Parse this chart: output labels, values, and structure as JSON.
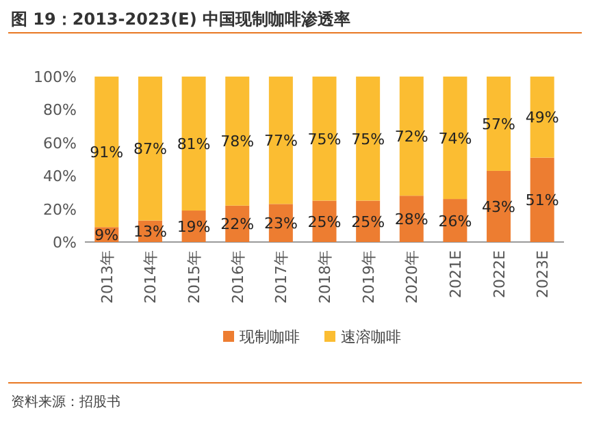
{
  "chart_data": {
    "type": "bar",
    "title": "图 19：2013-2023(E) 中国现制咖啡渗透率",
    "categories": [
      "2013年",
      "2014年",
      "2015年",
      "2016年",
      "2017年",
      "2018年",
      "2019年",
      "2020年",
      "2021E",
      "2022E",
      "2023E"
    ],
    "stacked": true,
    "legend": "bottom",
    "ylim": [
      0,
      100
    ],
    "yticks": [
      {
        "value": 0,
        "label": "0%"
      },
      {
        "value": 20,
        "label": "20%"
      },
      {
        "value": 40,
        "label": "40%"
      },
      {
        "value": 60,
        "label": "60%"
      },
      {
        "value": 80,
        "label": "80%"
      },
      {
        "value": 100,
        "label": "100%"
      }
    ],
    "series": [
      {
        "name": "现制咖啡",
        "color": "#ed7d31",
        "values": [
          9,
          13,
          19,
          22,
          23,
          25,
          25,
          28,
          26,
          43,
          51
        ],
        "value_labels": [
          "9%",
          "13%",
          "19%",
          "22%",
          "23%",
          "25%",
          "25%",
          "28%",
          "26%",
          "43%",
          "51%"
        ]
      },
      {
        "name": "速溶咖啡",
        "color": "#fbbd32",
        "values": [
          91,
          87,
          81,
          78,
          77,
          75,
          75,
          72,
          74,
          57,
          49
        ],
        "value_labels": [
          "91%",
          "87%",
          "81%",
          "78%",
          "77%",
          "75%",
          "75%",
          "72%",
          "74%",
          "57%",
          "49%"
        ]
      }
    ],
    "annotations": [
      "资料来源：招股书"
    ]
  }
}
